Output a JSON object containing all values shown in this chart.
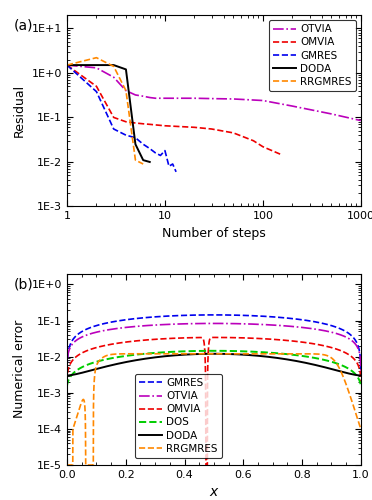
{
  "panel_a": {
    "xlabel": "Number of steps",
    "ylabel": "Residual",
    "xlim": [
      1,
      1000
    ],
    "ylim": [
      0.001,
      20
    ],
    "OTVIA": {
      "color": "#BB00BB",
      "ls": "-.",
      "steps": [
        1,
        2,
        3,
        4,
        5,
        6,
        7,
        8,
        9,
        10,
        20,
        30,
        50,
        100,
        200,
        500,
        1000
      ],
      "vals": [
        1.5,
        1.3,
        0.8,
        0.4,
        0.32,
        0.3,
        0.28,
        0.27,
        0.27,
        0.27,
        0.27,
        0.265,
        0.26,
        0.24,
        0.18,
        0.12,
        0.085
      ]
    },
    "OMVIA": {
      "color": "#EE0000",
      "ls": "--",
      "steps": [
        1,
        2,
        3,
        4,
        5,
        6,
        7,
        8,
        10,
        20,
        30,
        50,
        80,
        100,
        150
      ],
      "vals": [
        1.5,
        0.5,
        0.1,
        0.08,
        0.075,
        0.072,
        0.07,
        0.068,
        0.065,
        0.06,
        0.055,
        0.045,
        0.03,
        0.022,
        0.015
      ]
    },
    "GMRES": {
      "color": "#0000EE",
      "ls": "--",
      "steps": [
        1,
        2,
        3,
        4,
        5,
        6,
        7,
        8,
        9,
        10,
        11,
        12,
        13
      ],
      "vals": [
        1.5,
        0.38,
        0.055,
        0.04,
        0.035,
        0.025,
        0.02,
        0.016,
        0.014,
        0.018,
        0.008,
        0.009,
        0.006
      ]
    },
    "DODA": {
      "color": "#000000",
      "ls": "-",
      "steps": [
        1,
        2,
        3,
        4,
        5,
        6,
        7
      ],
      "vals": [
        1.5,
        1.5,
        1.5,
        1.2,
        0.025,
        0.011,
        0.01
      ]
    },
    "RRGMRES": {
      "color": "#FF8800",
      "ls": "--",
      "steps": [
        1,
        2,
        3,
        4,
        5,
        6
      ],
      "vals": [
        1.5,
        2.2,
        1.4,
        0.4,
        0.011,
        0.009
      ]
    }
  },
  "panel_b": {
    "xlabel": "x",
    "ylabel": "Numerical error",
    "xlim": [
      0.0,
      1.0
    ],
    "ylim": [
      1e-05,
      2.0
    ],
    "GMRES": {
      "color": "#0000EE",
      "ls": "--"
    },
    "OTVIA": {
      "color": "#BB00BB",
      "ls": "-."
    },
    "OMVIA": {
      "color": "#EE0000",
      "ls": "--"
    },
    "DOS": {
      "color": "#00CC00",
      "ls": "--"
    },
    "DODA": {
      "color": "#000000",
      "ls": "-"
    },
    "RRGMRES": {
      "color": "#FF8800",
      "ls": "--"
    }
  }
}
